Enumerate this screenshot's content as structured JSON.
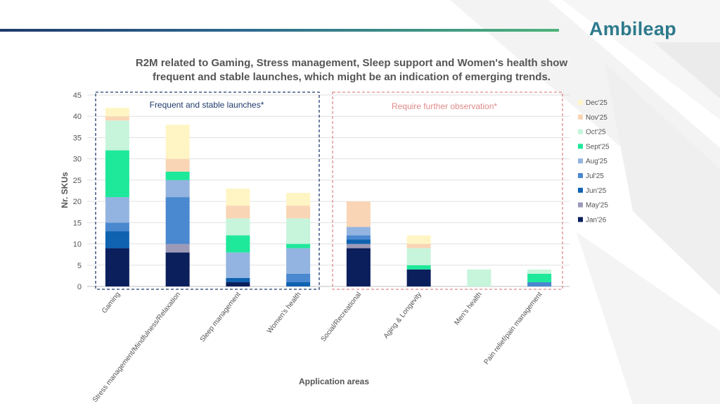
{
  "brand": {
    "logo_text": "Ambileap"
  },
  "title_lines": [
    "R2M related to Gaming, Stress management, Sleep support and Women's health show",
    "frequent and stable launches, which might be an indication of emerging trends."
  ],
  "colors": {
    "background": "#ffffff",
    "logo": "#2e7a8c",
    "header_gradient": [
      "#1f3a6b",
      "#2e6b8f",
      "#4db37a"
    ],
    "frame_frequent": "#1f3a6b",
    "frame_observe": "#e08a8a"
  },
  "annotations": {
    "frequent": "Frequent and stable launches*",
    "observe": "Require further observation*"
  },
  "chart_data": {
    "type": "bar",
    "stacked": true,
    "title": "R2M related to Gaming, Stress management, Sleep support and Women's health show frequent and stable launches, which might be an indication of emerging trends.",
    "xlabel": "Application areas",
    "ylabel": "Nr. SKUs",
    "ylim": [
      0,
      45
    ],
    "yticks": [
      0,
      5,
      10,
      15,
      20,
      25,
      30,
      35,
      40,
      45
    ],
    "grid": true,
    "legend_position": "right",
    "categories": [
      "Gaming",
      "Stress management/Mindfulness/Relaxation",
      "Sleep management",
      "Women's health",
      "Social/Recreational",
      "Aging & Longevity",
      "Men's health",
      "Pain relief/pain management"
    ],
    "series": [
      {
        "name": "Jan'26",
        "color": "#0b1f5c",
        "values": [
          9,
          8,
          1,
          0,
          9,
          4,
          0,
          0
        ]
      },
      {
        "name": "May'25",
        "color": "#9c9ab8",
        "values": [
          0,
          2,
          0,
          0,
          1,
          0,
          0,
          0
        ]
      },
      {
        "name": "Jun'25",
        "color": "#0e62b0",
        "values": [
          4,
          0,
          1,
          1,
          1,
          0,
          0,
          0
        ]
      },
      {
        "name": "Jul'25",
        "color": "#4a88d0",
        "values": [
          2,
          11,
          0,
          2,
          1,
          0,
          0,
          1
        ]
      },
      {
        "name": "Aug'25",
        "color": "#93b4e0",
        "values": [
          6,
          4,
          6,
          6,
          2,
          0,
          0,
          0
        ]
      },
      {
        "name": "Sept'25",
        "color": "#1ee89a",
        "values": [
          11,
          2,
          4,
          1,
          0,
          1,
          0,
          2
        ]
      },
      {
        "name": "Oct'25",
        "color": "#c6f5dc",
        "values": [
          7,
          0,
          4,
          6,
          0,
          4,
          4,
          1
        ]
      },
      {
        "name": "Nov'25",
        "color": "#f9d5b5",
        "values": [
          1,
          3,
          3,
          3,
          6,
          1,
          0,
          0
        ]
      },
      {
        "name": "Dec'25",
        "color": "#fff5c4",
        "values": [
          2,
          8,
          4,
          3,
          0,
          2,
          0,
          0
        ]
      }
    ],
    "legend_order": [
      "Dec'25",
      "Nov'25",
      "Oct'25",
      "Sept'25",
      "Aug'25",
      "Jul'25",
      "Jun'25",
      "May'25",
      "Jan'26"
    ]
  }
}
